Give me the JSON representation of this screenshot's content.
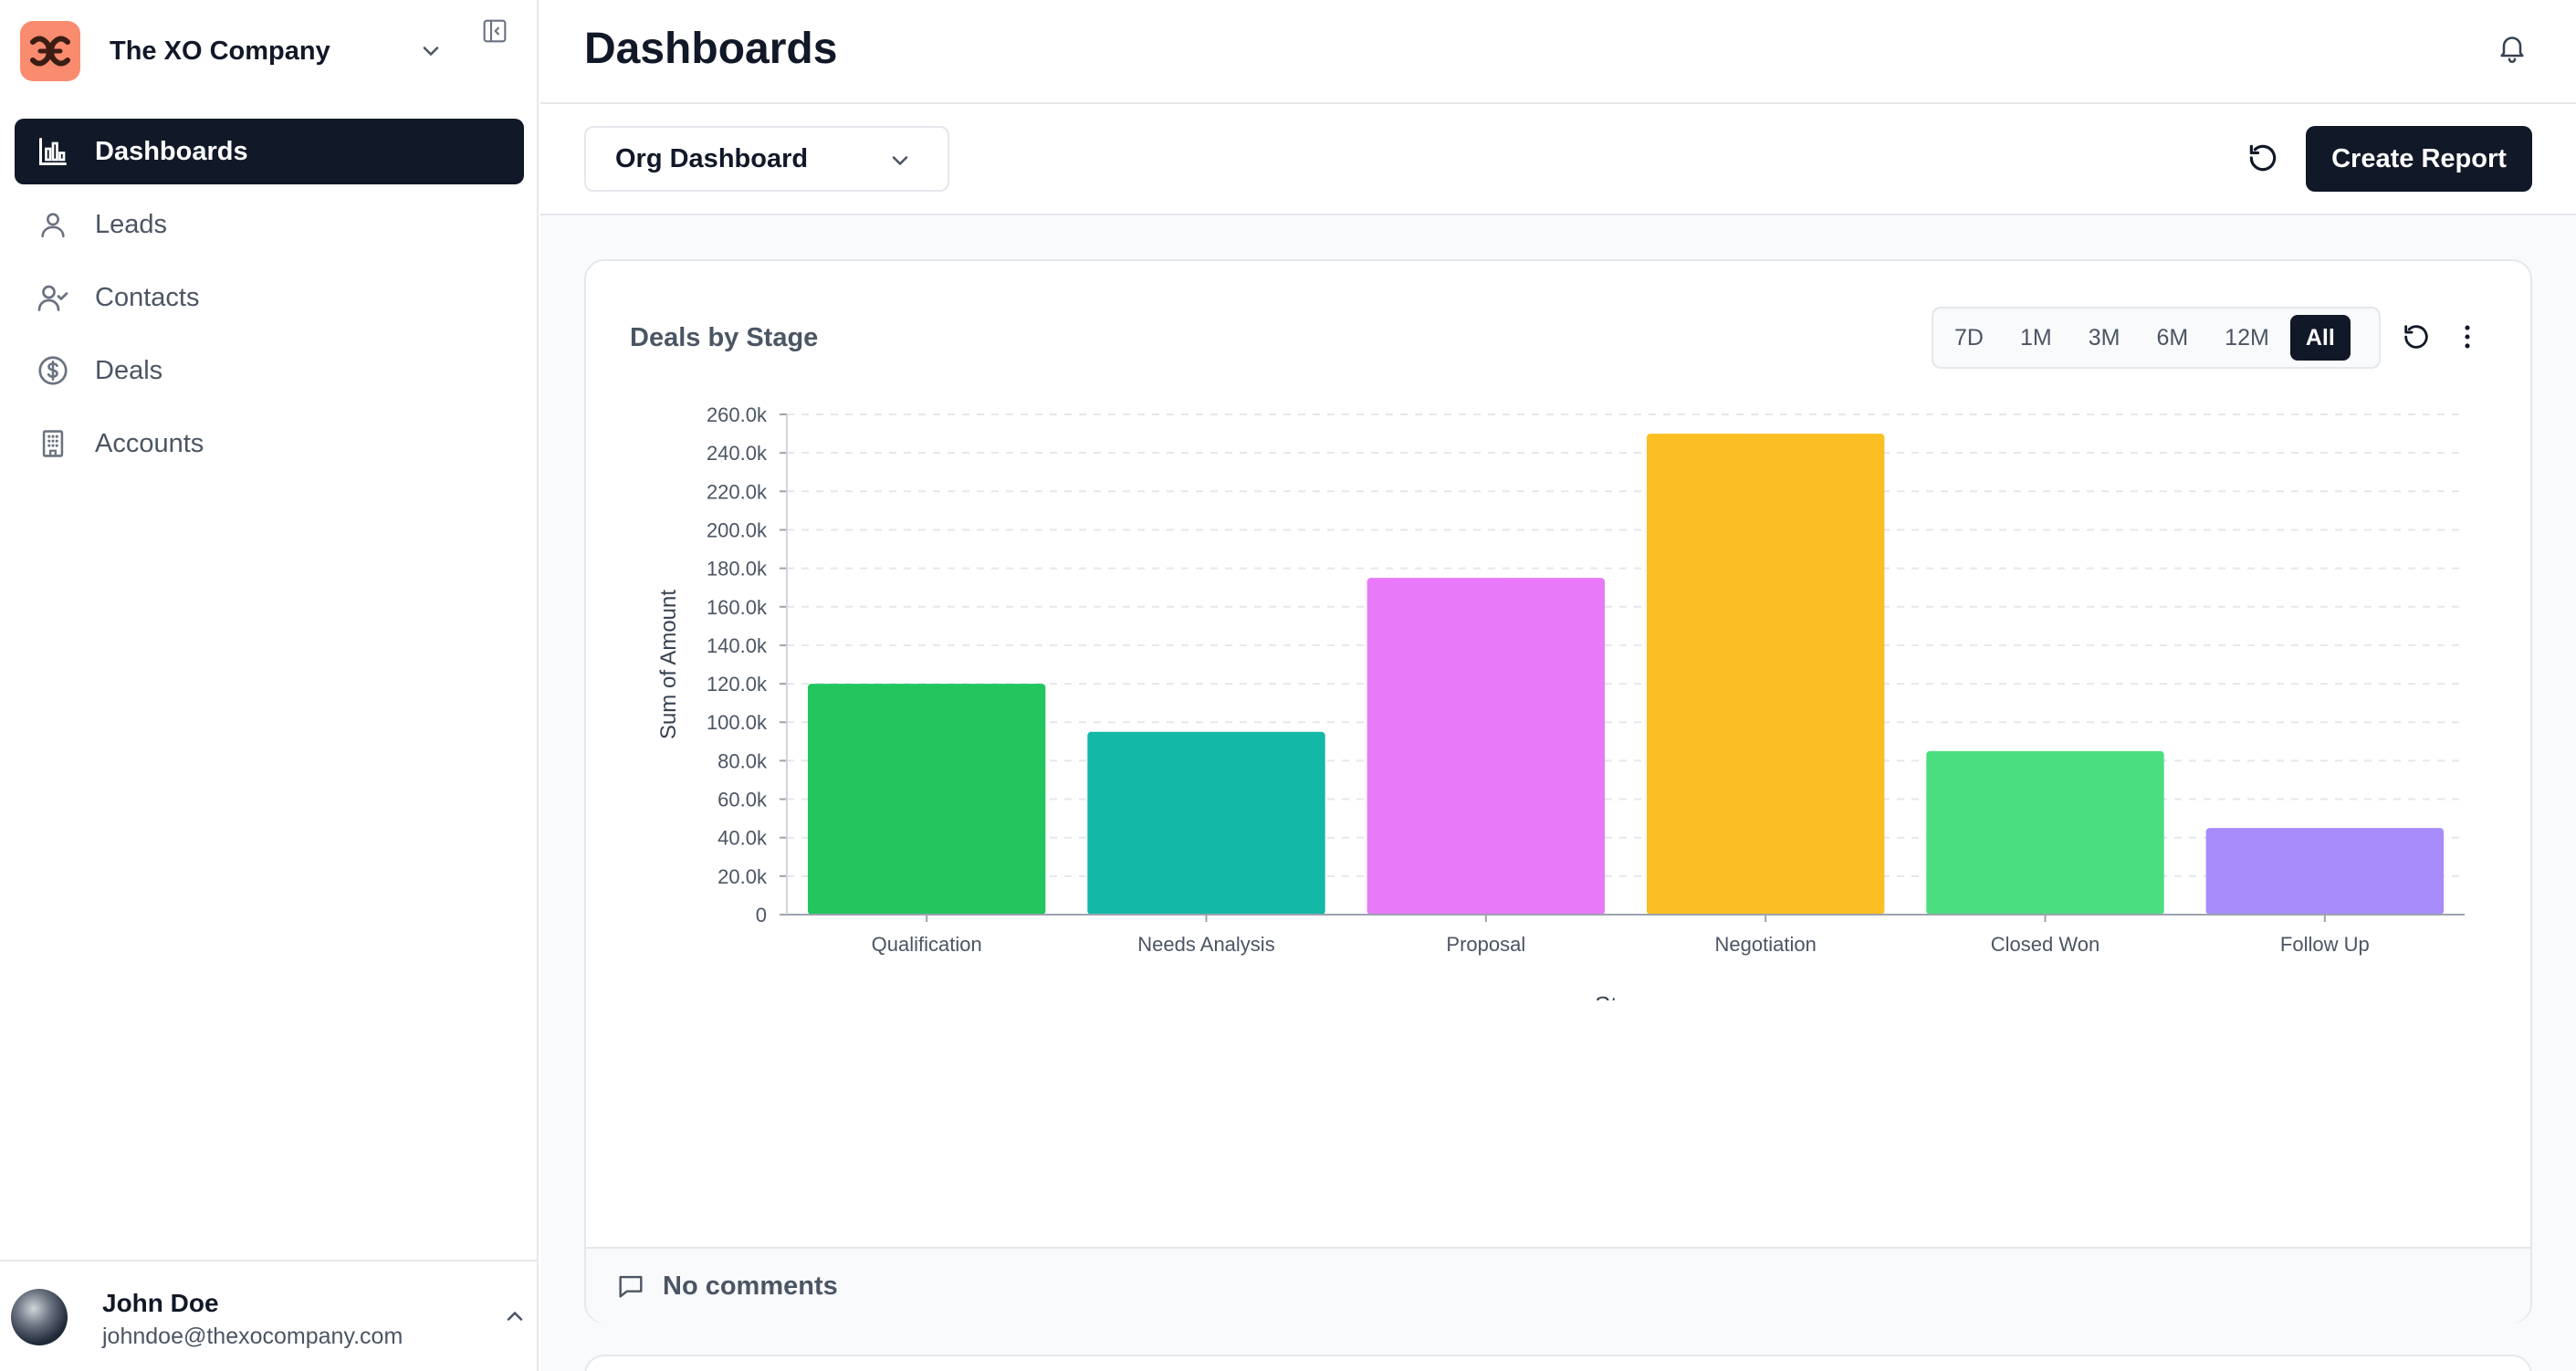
{
  "company": {
    "name": "The XO Company"
  },
  "sidebar": {
    "items": [
      {
        "label": "Dashboards",
        "icon": "bar-chart-icon",
        "active": true
      },
      {
        "label": "Leads",
        "icon": "user-icon"
      },
      {
        "label": "Contacts",
        "icon": "user-check-icon"
      },
      {
        "label": "Deals",
        "icon": "dollar-circle-icon"
      },
      {
        "label": "Accounts",
        "icon": "building-icon"
      }
    ]
  },
  "user": {
    "name": "John Doe",
    "email": "johndoe@thexocompany.com"
  },
  "header": {
    "title": "Dashboards"
  },
  "toolbar": {
    "dashboard_select": "Org Dashboard",
    "create_label": "Create Report"
  },
  "card": {
    "title": "Deals by Stage",
    "ranges": [
      "7D",
      "1M",
      "3M",
      "6M",
      "12M",
      "All"
    ],
    "selected_range": "All",
    "footer": "No comments"
  },
  "colors": {
    "primary": "#111827",
    "brand": "#f98b6f"
  },
  "chart_data": {
    "type": "bar",
    "categories": [
      "Qualification",
      "Needs Analysis",
      "Proposal",
      "Negotiation",
      "Closed Won",
      "Follow Up"
    ],
    "values": [
      120000,
      95000,
      175000,
      250000,
      85000,
      45000
    ],
    "colors": [
      "#22c55e",
      "#14b8a6",
      "#e879f9",
      "#fbbf24",
      "#4ade80",
      "#a78bfa"
    ],
    "xlabel": "Stage",
    "ylabel": "Sum of Amount",
    "ylim": [
      0,
      260000
    ],
    "yticks": [
      "0",
      "20.0k",
      "40.0k",
      "60.0k",
      "80.0k",
      "100.0k",
      "120.0k",
      "140.0k",
      "160.0k",
      "180.0k",
      "200.0k",
      "220.0k",
      "240.0k",
      "260.0k"
    ],
    "grid": true
  }
}
